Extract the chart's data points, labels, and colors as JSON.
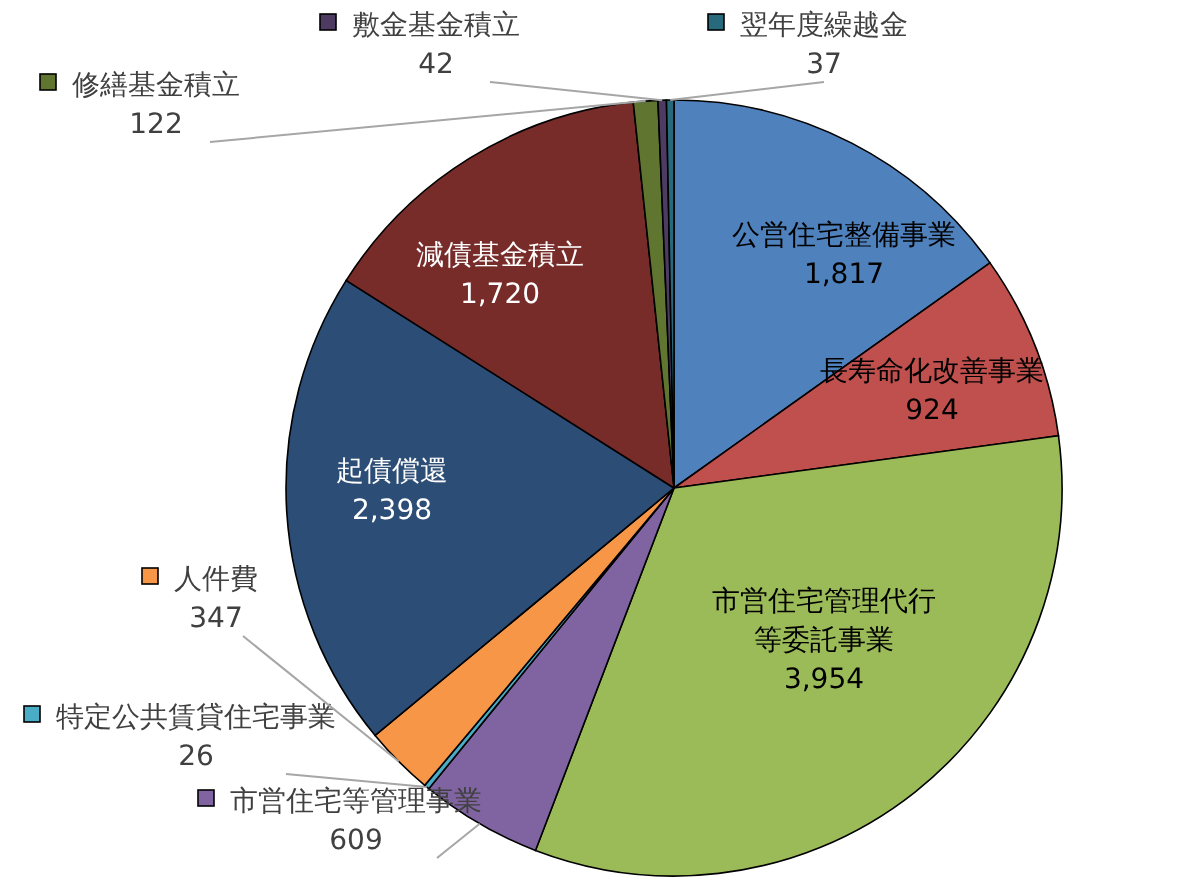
{
  "chart_data": {
    "type": "pie",
    "categories": [
      "公営住宅整備事業",
      "長寿命化改善事業",
      "市営住宅管理代行等委託事業",
      "市営住宅等管理事業",
      "特定公共賃貸住宅事業",
      "人件費",
      "起債償還",
      "減債基金積立",
      "修繕基金積立",
      "敷金基金積立",
      "翌年度繰越金"
    ],
    "values": [
      1817,
      924,
      3954,
      609,
      26,
      347,
      2398,
      1720,
      122,
      42,
      37
    ],
    "value_labels": [
      "1,817",
      "924",
      "3,954",
      "609",
      "26",
      "347",
      "2,398",
      "1,720",
      "122",
      "42",
      "37"
    ],
    "legend": "left",
    "colors": [
      "#4f81bd",
      "#c0504d",
      "#9bbb59",
      "#8064a2",
      "#4bacc6",
      "#f79646",
      "#2c4d75",
      "#772c2a",
      "#5f7530",
      "#4d3b62",
      "#276a7c"
    ]
  }
}
